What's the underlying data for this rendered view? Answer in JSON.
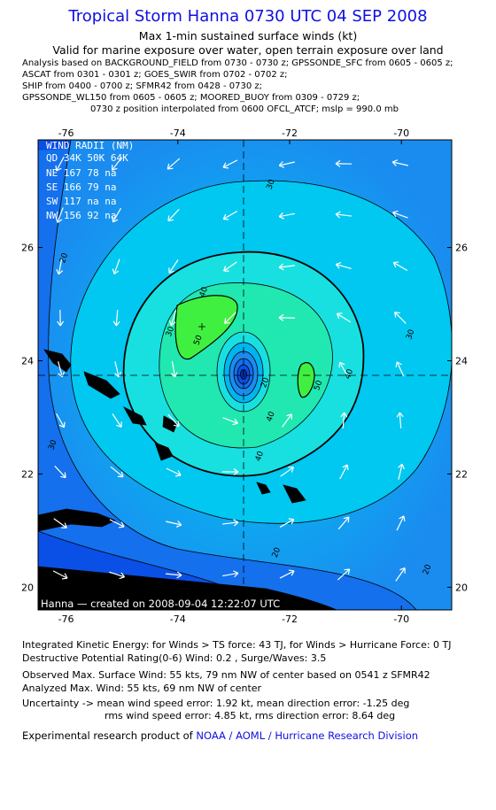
{
  "header": {
    "title": "Tropical Storm Hanna 0730 UTC 04 SEP 2008",
    "subtitle": "Max 1-min sustained surface winds (kt)",
    "valid": "Valid for marine exposure over water, open terrain exposure over land",
    "analysis_lines": [
      "Analysis based on  BACKGROUND_FIELD from 0730 - 0730 z;  GPSSONDE_SFC from 0605 - 0605 z;",
      "ASCAT from 0301 - 0301 z;  GOES_SWIR from 0702 - 0702 z;",
      "SHIP from 0400 - 0700 z;  SFMR42 from 0428 - 0730 z;",
      "GPSSONDE_WL150 from 0605 - 0605 z;  MOORED_BUOY from 0309 - 0729 z;",
      "0730 z position interpolated from 0600 OFCL_ATCF; mslp = 990.0 mb"
    ]
  },
  "colors": {
    "title": "#1010e0",
    "ocean_deep": "#0a50e6",
    "ocean": "#1a8cf0",
    "cyan": "#00c8f0",
    "light_cyan": "#18e0e0",
    "teal": "#20e8b0",
    "green": "#30f070",
    "bright_green": "#40f040"
  },
  "chart_data": {
    "type": "contour",
    "xlim": [
      -76.5,
      -69.1
    ],
    "ylim": [
      19.6,
      27.9
    ],
    "x_ticks": [
      "-76",
      "-74",
      "-72",
      "-70"
    ],
    "y_ticks": [
      "20",
      "22",
      "24",
      "26"
    ],
    "center": [
      -72.5,
      23.6
    ],
    "contour_levels": [
      20,
      30,
      40,
      50
    ],
    "contour_labels": [
      {
        "text": "30",
        "x": -72.3,
        "y": 27.1
      },
      {
        "text": "20",
        "x": -76.0,
        "y": 25.8
      },
      {
        "text": "40",
        "x": -73.5,
        "y": 25.2
      },
      {
        "text": "30",
        "x": -74.1,
        "y": 24.5
      },
      {
        "text": "50",
        "x": -73.6,
        "y": 24.35
      },
      {
        "text": "30",
        "x": -69.8,
        "y": 24.45
      },
      {
        "text": "40",
        "x": -70.9,
        "y": 23.75
      },
      {
        "text": "50",
        "x": -71.45,
        "y": 23.55
      },
      {
        "text": "20",
        "x": -72.4,
        "y": 23.6
      },
      {
        "text": "40",
        "x": -72.3,
        "y": 23.0
      },
      {
        "text": "30",
        "x": -76.2,
        "y": 22.5
      },
      {
        "text": "40",
        "x": -72.5,
        "y": 22.3
      },
      {
        "text": "20",
        "x": -72.2,
        "y": 20.6
      },
      {
        "text": "20",
        "x": -69.5,
        "y": 20.3
      }
    ],
    "wind_radii": {
      "title": "WIND RADII (NM)",
      "header": [
        "QD",
        "34K",
        "50K",
        "64K"
      ],
      "rows": [
        [
          "NE",
          "167",
          "78",
          "na"
        ],
        [
          "SE",
          "166",
          "79",
          "na"
        ],
        [
          "SW",
          "117",
          "na",
          "na"
        ],
        [
          "NW",
          "156",
          "92",
          "na"
        ]
      ]
    },
    "credit": "Hanna  —  created on 2008-09-04 12:22:07 UTC"
  },
  "footer": {
    "ike": "Integrated Kinetic Energy:  for Winds > TS force: 43 TJ,  for Winds > Hurricane Force: 0 TJ",
    "dpr": "Destructive Potential Rating(0-6)   Wind: 0.2 , Surge/Waves: 3.5",
    "obs_max": "Observed Max. Surface Wind: 55 kts, 79 nm NW of center based on 0541 z SFMR42",
    "analyzed_max": "Analyzed Max. Wind: 55 kts, 69 nm NW of center",
    "uncert1": "Uncertainty -> mean wind speed error: 1.92 kt,   mean direction error:  -1.25 deg",
    "uncert2": "rms wind speed error: 4.85 kt,   rms direction error: 8.64 deg",
    "product_prefix": "Experimental research product of",
    "product_org": "NOAA / AOML / Hurricane Research Division"
  }
}
